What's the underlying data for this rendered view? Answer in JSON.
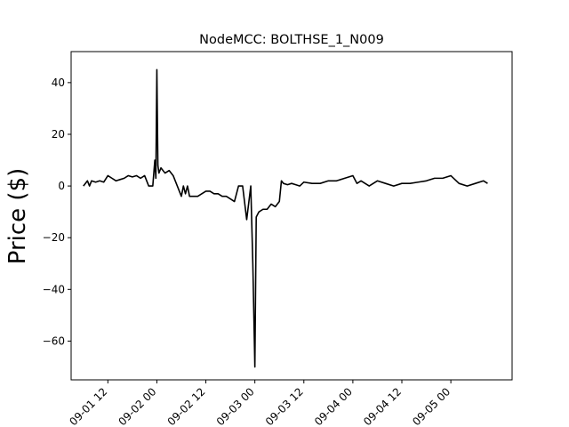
{
  "chart_data": {
    "type": "line",
    "title": "NodeMCC: BOLTHSE_1_N009",
    "xlabel": "",
    "ylabel": "Price ($)",
    "xlim": [
      "2018-09-01 03:00",
      "2018-09-05 15:00"
    ],
    "ylim": [
      -75,
      52
    ],
    "grid": false,
    "line_color": "#000000",
    "y_ticks": [
      40,
      20,
      0,
      -20,
      -40,
      -60
    ],
    "x_ticks": [
      {
        "value": "2018-09-01 12:00",
        "label": "09-01 12"
      },
      {
        "value": "2018-09-02 00:00",
        "label": "09-02 00"
      },
      {
        "value": "2018-09-02 12:00",
        "label": "09-02 12"
      },
      {
        "value": "2018-09-03 00:00",
        "label": "09-03 00"
      },
      {
        "value": "2018-09-03 12:00",
        "label": "09-03 12"
      },
      {
        "value": "2018-09-04 00:00",
        "label": "09-04 00"
      },
      {
        "value": "2018-09-04 12:00",
        "label": "09-04 12"
      },
      {
        "value": "2018-09-05 00:00",
        "label": "09-05 00"
      }
    ],
    "series": [
      {
        "x": [
          "2018-09-01 06:00",
          "2018-09-01 07:00",
          "2018-09-01 07:30",
          "2018-09-01 08:00",
          "2018-09-01 09:00",
          "2018-09-01 10:00",
          "2018-09-01 11:00",
          "2018-09-01 12:00",
          "2018-09-01 13:00",
          "2018-09-01 14:00",
          "2018-09-01 15:00",
          "2018-09-01 16:00",
          "2018-09-01 17:00",
          "2018-09-01 18:00",
          "2018-09-01 19:00",
          "2018-09-01 20:00",
          "2018-09-01 21:00",
          "2018-09-01 22:00",
          "2018-09-01 23:00",
          "2018-09-01 23:30",
          "2018-09-01 23:45",
          "2018-09-02 00:00",
          "2018-09-02 00:15",
          "2018-09-02 00:30",
          "2018-09-02 01:00",
          "2018-09-02 02:00",
          "2018-09-02 03:00",
          "2018-09-02 04:00",
          "2018-09-02 05:00",
          "2018-09-02 06:00",
          "2018-09-02 06:30",
          "2018-09-02 07:00",
          "2018-09-02 07:30",
          "2018-09-02 08:00",
          "2018-09-02 09:00",
          "2018-09-02 10:00",
          "2018-09-02 11:00",
          "2018-09-02 12:00",
          "2018-09-02 13:00",
          "2018-09-02 14:00",
          "2018-09-02 15:00",
          "2018-09-02 16:00",
          "2018-09-02 17:00",
          "2018-09-02 18:00",
          "2018-09-02 19:00",
          "2018-09-02 20:00",
          "2018-09-02 21:00",
          "2018-09-02 22:00",
          "2018-09-02 23:00",
          "2018-09-02 23:30",
          "2018-09-03 00:00",
          "2018-09-03 00:20",
          "2018-09-03 00:40",
          "2018-09-03 01:00",
          "2018-09-03 02:00",
          "2018-09-03 03:00",
          "2018-09-03 04:00",
          "2018-09-03 05:00",
          "2018-09-03 06:00",
          "2018-09-03 06:30",
          "2018-09-03 07:00",
          "2018-09-03 08:00",
          "2018-09-03 09:00",
          "2018-09-03 10:00",
          "2018-09-03 11:00",
          "2018-09-03 12:00",
          "2018-09-03 14:00",
          "2018-09-03 16:00",
          "2018-09-03 18:00",
          "2018-09-03 20:00",
          "2018-09-03 22:00",
          "2018-09-04 00:00",
          "2018-09-04 01:00",
          "2018-09-04 02:00",
          "2018-09-04 04:00",
          "2018-09-04 06:00",
          "2018-09-04 08:00",
          "2018-09-04 10:00",
          "2018-09-04 12:00",
          "2018-09-04 14:00",
          "2018-09-04 16:00",
          "2018-09-04 18:00",
          "2018-09-04 20:00",
          "2018-09-04 22:00",
          "2018-09-05 00:00",
          "2018-09-05 02:00",
          "2018-09-05 04:00",
          "2018-09-05 06:00",
          "2018-09-05 08:00",
          "2018-09-05 09:00"
        ],
        "y": [
          0,
          2,
          0,
          2,
          1.5,
          2,
          1.5,
          4,
          3,
          2,
          2.5,
          3,
          4,
          3.5,
          4,
          3,
          4,
          0,
          0,
          10,
          3,
          45,
          8,
          5,
          7,
          5,
          6,
          4,
          0,
          -4,
          0,
          -3,
          0,
          -4,
          -4,
          -4,
          -3,
          -2,
          -2,
          -3,
          -3,
          -4,
          -4,
          -5,
          -6,
          0,
          0,
          -13,
          0,
          -30,
          -70,
          -12,
          -11,
          -10,
          -9,
          -9,
          -7,
          -8,
          -6,
          2,
          1,
          0.5,
          1,
          0.5,
          0,
          1.5,
          1,
          1,
          2,
          2,
          3,
          4,
          1,
          2,
          0,
          2,
          1,
          0,
          1,
          1,
          1.5,
          2,
          3,
          3,
          4,
          1,
          0,
          1,
          2,
          1
        ]
      }
    ]
  }
}
